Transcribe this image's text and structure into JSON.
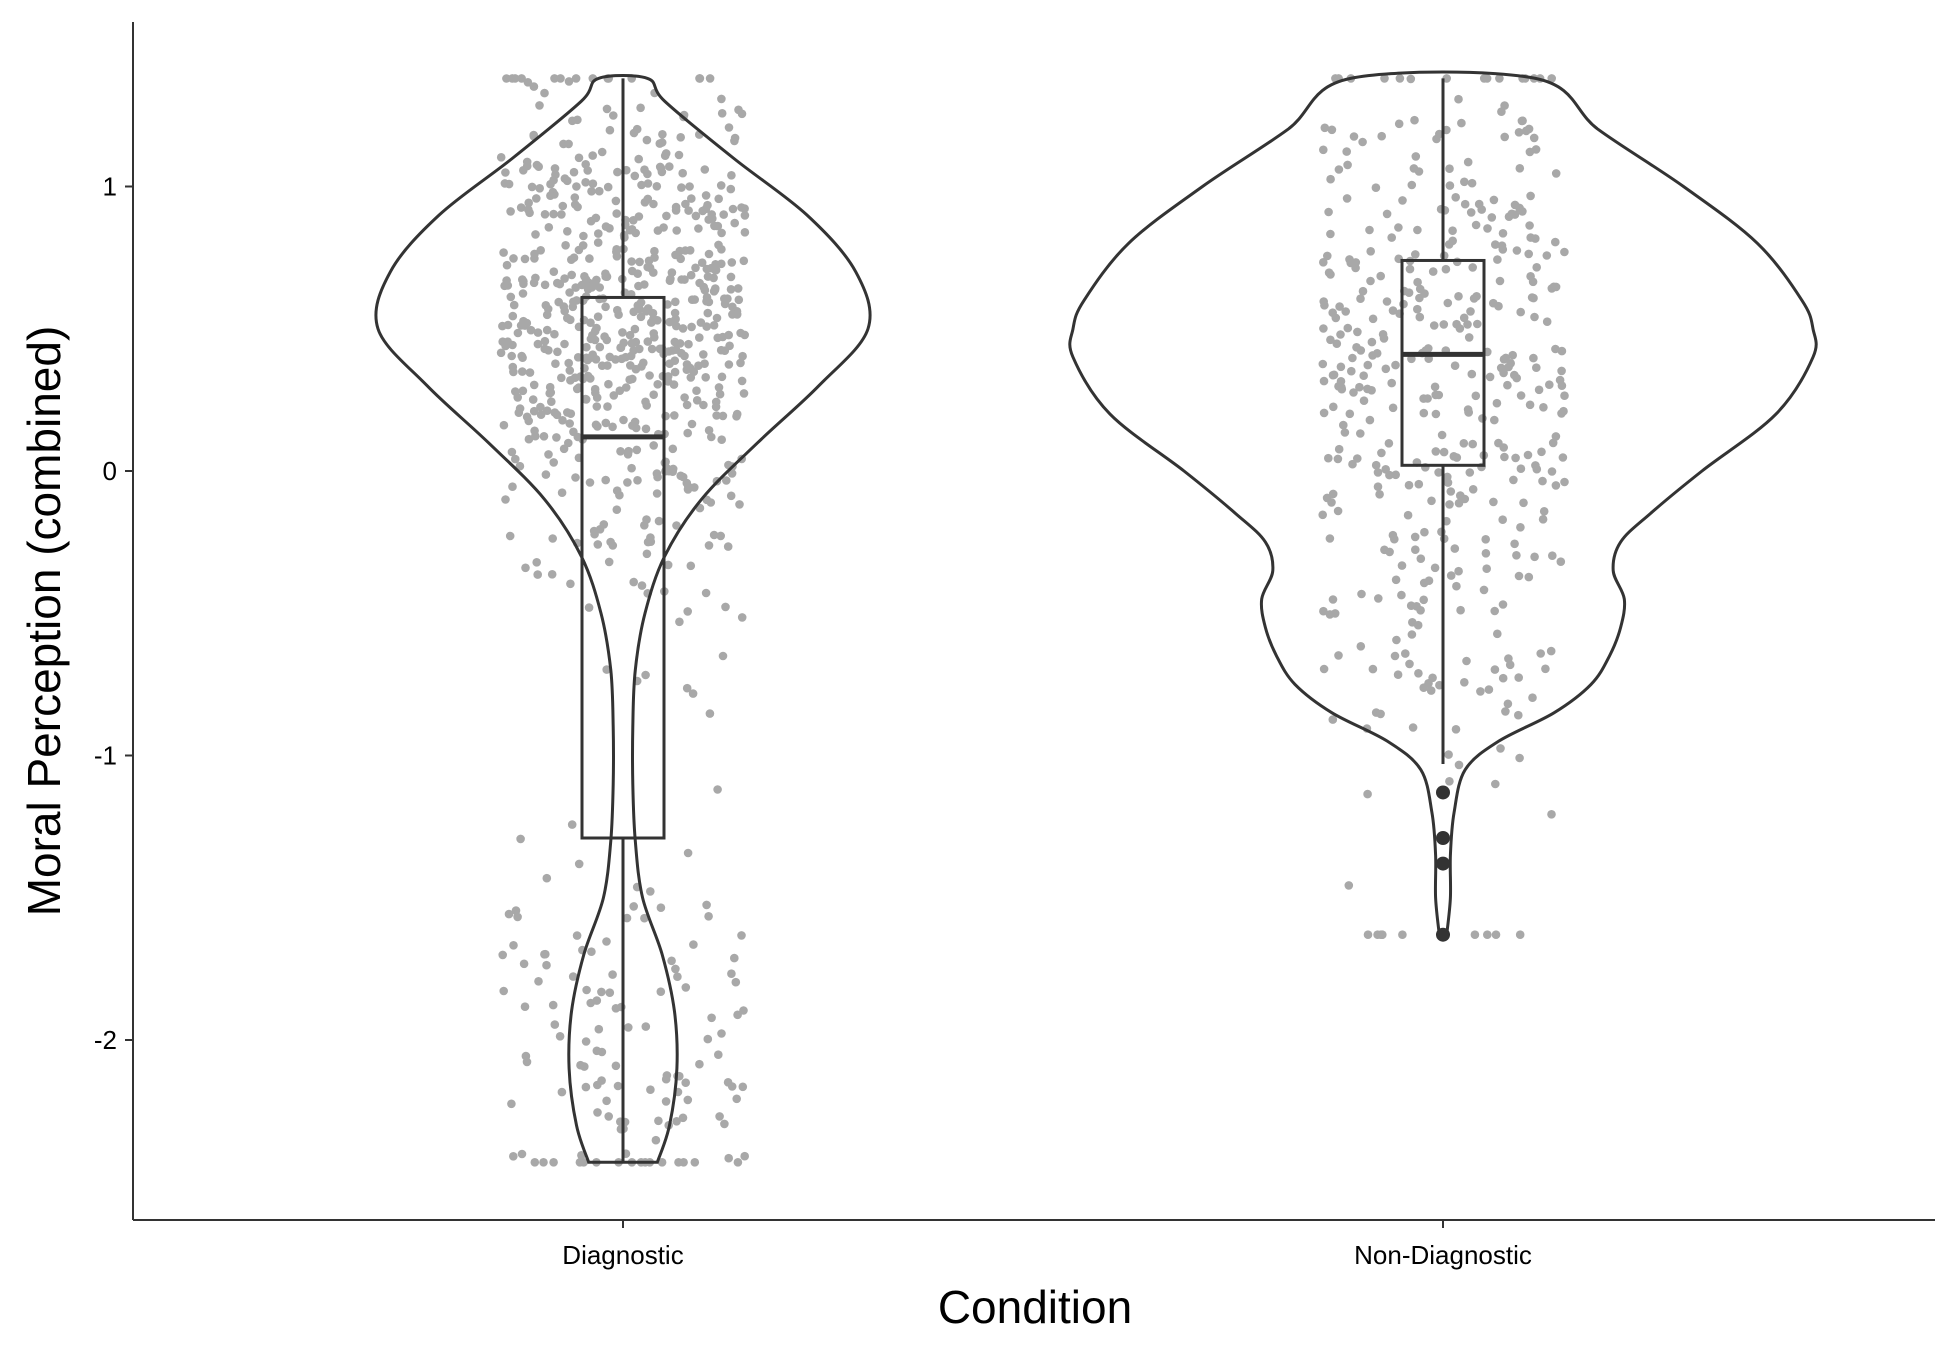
{
  "chart_data": {
    "type": "violin",
    "title": "",
    "xlabel": "Condition",
    "ylabel": "Moral Perception (combined)",
    "ylim": [
      -2.62,
      1.58
    ],
    "yticks": [
      1,
      0,
      -1,
      -2
    ],
    "ytick_labels": [
      "1",
      "0",
      "-1",
      "-2"
    ],
    "categories": [
      "Diagnostic",
      "Non-Diagnostic"
    ],
    "grid": false,
    "colors": {
      "line": "#333333",
      "points": "#a8a8a8",
      "axis": "#333333"
    },
    "groups": [
      {
        "name": "Diagnostic",
        "box": {
          "q1": -1.29,
          "median": 0.12,
          "q3": 0.61,
          "whisker_low": -2.43,
          "whisker_high": 1.38
        },
        "violin": {
          "y": [
            -2.43,
            -2.3,
            -2.1,
            -1.9,
            -1.7,
            -1.5,
            -1.3,
            -1.1,
            -0.9,
            -0.7,
            -0.5,
            -0.3,
            -0.1,
            0.1,
            0.3,
            0.5,
            0.7,
            0.9,
            1.1,
            1.3,
            1.38
          ],
          "width": [
            0.14,
            0.19,
            0.22,
            0.21,
            0.16,
            0.08,
            0.05,
            0.04,
            0.04,
            0.05,
            0.09,
            0.17,
            0.32,
            0.55,
            0.8,
            1.0,
            0.95,
            0.75,
            0.45,
            0.17,
            0.1
          ]
        },
        "outliers": [],
        "jitter_n": 760
      },
      {
        "name": "Non-Diagnostic",
        "box": {
          "q1": 0.02,
          "median": 0.41,
          "q3": 0.74,
          "whisker_low": -1.03,
          "whisker_high": 1.38
        },
        "violin": {
          "y": [
            -1.63,
            -1.5,
            -1.35,
            -1.2,
            -1.05,
            -0.95,
            -0.85,
            -0.75,
            -0.65,
            -0.55,
            -0.45,
            -0.35,
            -0.25,
            -0.15,
            0.0,
            0.2,
            0.4,
            0.5,
            0.6,
            0.8,
            1.0,
            1.2,
            1.38
          ],
          "width": [
            0.01,
            0.02,
            0.02,
            0.03,
            0.06,
            0.15,
            0.3,
            0.4,
            0.45,
            0.48,
            0.49,
            0.46,
            0.48,
            0.56,
            0.7,
            0.9,
            1.0,
            1.0,
            0.97,
            0.85,
            0.65,
            0.42,
            0.25
          ]
        },
        "outliers": [
          -1.13,
          -1.29,
          -1.38,
          -1.63
        ],
        "jitter_n": 430
      }
    ]
  }
}
